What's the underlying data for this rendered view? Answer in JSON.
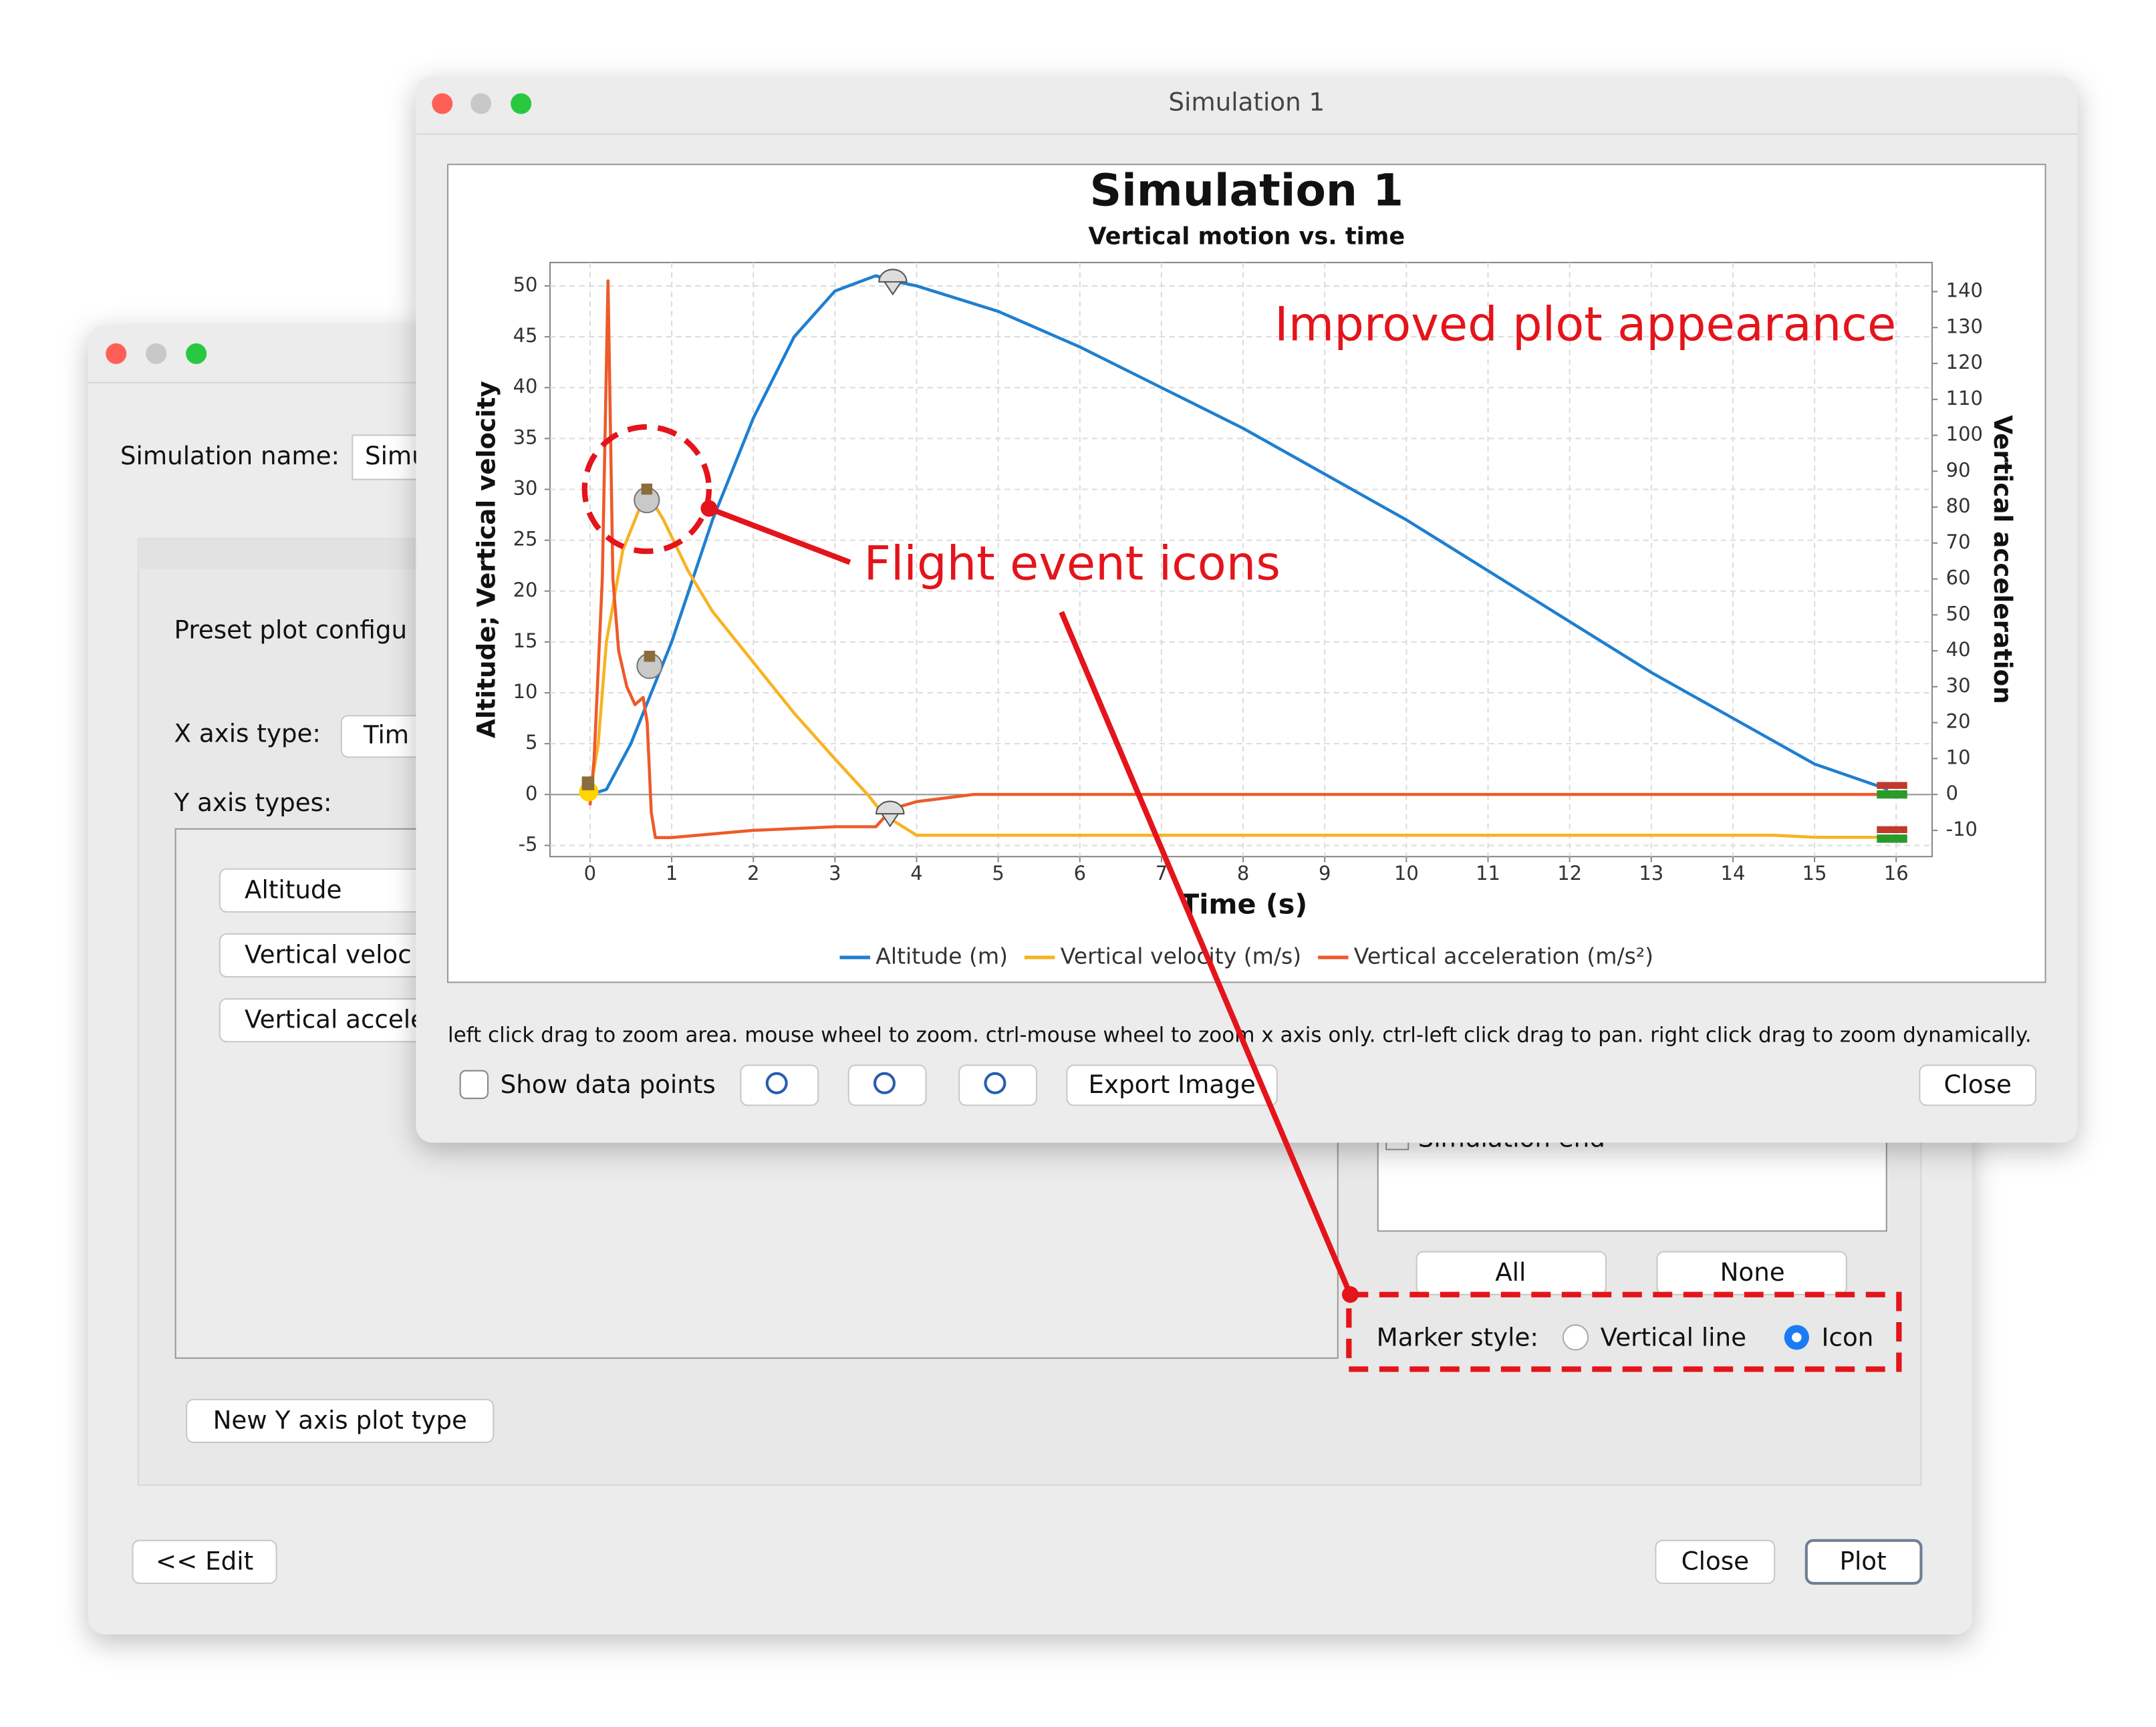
{
  "background_window": {
    "simulation_name_label": "Simulation name:",
    "simulation_name_value": "Simu",
    "preset_label": "Preset plot configu",
    "x_axis_type_label": "X axis type:",
    "x_axis_type_value": "Tim",
    "y_axis_types_label": "Y axis types:",
    "y_axis_types": [
      "Altitude",
      "Vertical veloc",
      "Vertical accele"
    ],
    "event_partial": "Simulation end",
    "buttons": {
      "all": "All",
      "none": "None",
      "new_y": "New Y axis plot type",
      "edit": "<< Edit",
      "close": "Close",
      "plot": "Plot"
    },
    "marker_style": {
      "label": "Marker style:",
      "options": [
        "Vertical line",
        "Icon"
      ]
    }
  },
  "plot_window": {
    "title": "Simulation 1",
    "help_text": "left click drag to zoom area. mouse wheel to zoom. ctrl-mouse wheel to zoom x axis only. ctrl-left click drag to pan.  right click drag to zoom dynamically.",
    "show_data_points": "Show data points",
    "export": "Export Image",
    "close": "Close"
  },
  "annotations": [
    "Improved plot appearance",
    "Flight event icons"
  ],
  "chart_data": {
    "type": "line",
    "title": "Simulation 1",
    "subtitle": "Vertical motion vs. time",
    "xlabel": "Time (s)",
    "ylabel": "Altitude; Vertical velocity",
    "y2label": "Vertical acceleration",
    "xlim": [
      -0.49,
      16.44
    ],
    "ylim": [
      -6.1,
      52.3
    ],
    "y2lim": [
      -17.3,
      148.1
    ],
    "xticks": [
      0,
      1,
      2,
      3,
      4,
      5,
      6,
      7,
      8,
      9,
      10,
      11,
      12,
      13,
      14,
      15,
      16
    ],
    "yticks": [
      -5,
      0,
      5,
      10,
      15,
      20,
      25,
      30,
      35,
      40,
      45,
      50
    ],
    "y2ticks": [
      -10,
      0,
      10,
      20,
      30,
      40,
      50,
      60,
      70,
      80,
      90,
      100,
      110,
      120,
      130,
      140
    ],
    "grid": true,
    "legend": "bottom",
    "series": [
      {
        "name": "Altitude (m)",
        "color": "#1f7fd0",
        "x": [
          0,
          0.2,
          0.5,
          1,
          1.5,
          2,
          2.5,
          3,
          3.5,
          3.7,
          4,
          5,
          6,
          7,
          8,
          9,
          10,
          11,
          12,
          13,
          14,
          15,
          15.9
        ],
        "values": [
          0,
          0.5,
          5,
          15,
          27,
          37,
          45,
          49.5,
          51,
          50.5,
          50,
          47.5,
          44,
          40,
          36,
          31.5,
          27,
          22,
          17,
          12,
          7.5,
          3,
          0.5
        ]
      },
      {
        "name": "Vertical velocity (m/s)",
        "color": "#f8b323",
        "x": [
          0,
          0.1,
          0.2,
          0.4,
          0.6,
          0.75,
          0.9,
          1.2,
          1.5,
          2,
          2.5,
          3,
          3.4,
          3.6,
          4,
          5,
          10,
          14.5,
          15,
          15.9
        ],
        "values": [
          0,
          5,
          15,
          24,
          28,
          29,
          27,
          22,
          18,
          13,
          8,
          3.5,
          0,
          -2,
          -4,
          -4,
          -4,
          -4,
          -4.2,
          -4.2
        ]
      },
      {
        "name": "Vertical acceleration (m/s²)",
        "color": "#ee5a2a",
        "axis": "y2",
        "x": [
          0,
          0.05,
          0.15,
          0.22,
          0.28,
          0.35,
          0.45,
          0.55,
          0.65,
          0.7,
          0.75,
          0.8,
          1,
          2,
          3,
          3.5,
          3.7,
          4,
          4.7,
          10,
          15,
          15.9
        ],
        "values": [
          -3,
          10,
          60,
          143,
          60,
          40,
          30,
          25,
          27,
          20,
          -5,
          -12,
          -12,
          -10,
          -9,
          -9,
          -4,
          -2,
          0,
          0,
          0,
          0
        ]
      }
    ]
  }
}
